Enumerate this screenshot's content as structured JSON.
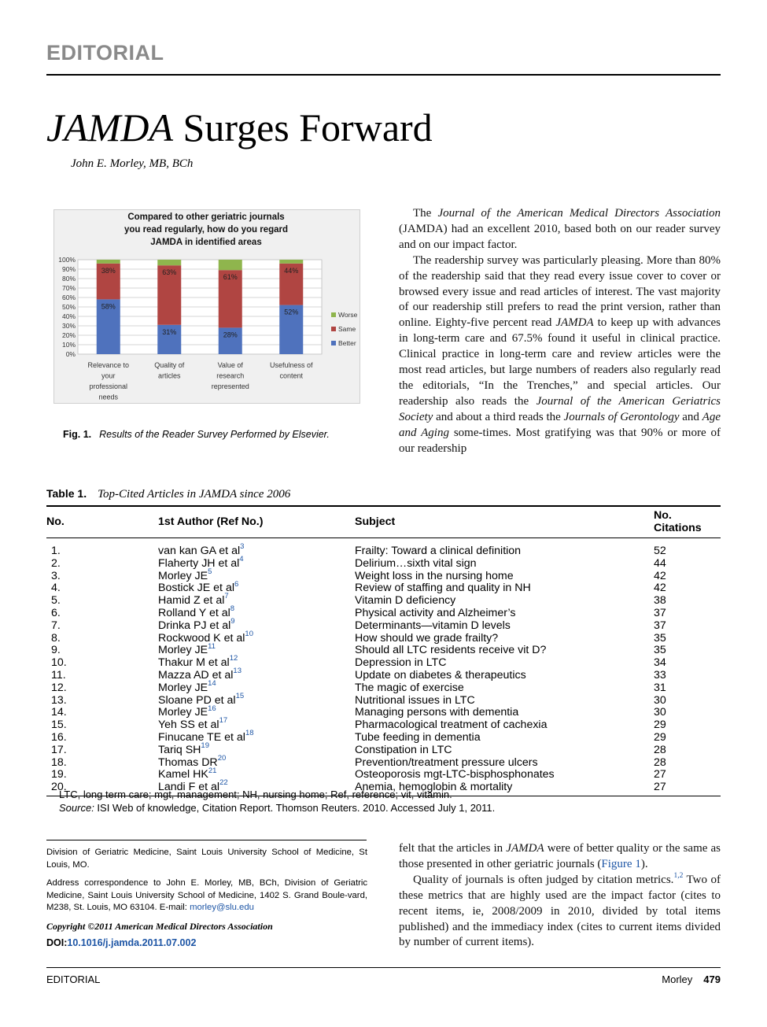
{
  "header": {
    "section_label": "EDITORIAL"
  },
  "article": {
    "title_italic": "JAMDA",
    "title_rest": " Surges Forward",
    "author": "John E. Morley, MB, BCh"
  },
  "figure": {
    "label": "Fig. 1.",
    "caption": "Results of the Reader Survey Performed by Elsevier.",
    "chart_title_lines": [
      "Compared to other geriatric journals",
      "you read regularly, how do you regard",
      "JAMDA in identified areas"
    ]
  },
  "chart_data": {
    "type": "bar",
    "stacked": true,
    "title": "Compared to other geriatric journals you read regularly, how do you regard JAMDA in identified areas",
    "categories": [
      [
        "Relevance to",
        "your",
        "professional",
        "needs"
      ],
      [
        "Quality of",
        "articles"
      ],
      [
        "Value of",
        "research",
        "represented"
      ],
      [
        "Usefulness of",
        "content"
      ]
    ],
    "series": [
      {
        "name": "Better",
        "color": "#4f72bd",
        "values": [
          58,
          31,
          28,
          52
        ],
        "labels": [
          "58%",
          "31%",
          "28%",
          "52%"
        ]
      },
      {
        "name": "Same",
        "color": "#b04542",
        "values": [
          38,
          63,
          61,
          44
        ],
        "labels": [
          "38%",
          "63%",
          "61%",
          "44%"
        ]
      },
      {
        "name": "Worse",
        "color": "#8fb54d",
        "values": [
          4,
          6,
          11,
          4
        ],
        "labels": [
          "",
          "",
          "",
          ""
        ]
      }
    ],
    "y_ticks": [
      "0%",
      "10%",
      "20%",
      "30%",
      "40%",
      "50%",
      "60%",
      "70%",
      "80%",
      "90%",
      "100%"
    ],
    "ylim": [
      0,
      100
    ],
    "grid": true,
    "legend_position": "right"
  },
  "body": {
    "right_col": {
      "p1_a": "The ",
      "p1_i": "Journal of the American Medical Directors Association",
      "p1_b": " (JAMDA) had an excellent 2010, based both on our reader survey and on our impact factor.",
      "p2_a": "The readership survey was particularly pleasing. More than 80% of the readership said that they read every issue cover to cover or browsed every issue and read articles of interest. The vast majority of our readership still prefers to read the print version, rather than online. Eighty-five percent read ",
      "p2_i1": "JAMDA",
      "p2_b": " to keep up with advances in long-term care and 67.5% found it useful in clinical practice. Clinical practice in long-term care and review articles were the most read articles, but large numbers of readers also regularly read the editorials, “In the Trenches,” and special articles. Our readership also reads the ",
      "p2_i2": "Journal of the American Geriatrics Society",
      "p2_c": " and about a third reads the ",
      "p2_i3": "Journals of Gerontology",
      "p2_d": " and ",
      "p2_i4": "Age and Aging",
      "p2_e": " some-times. Most gratifying was that 90% or more of our readership"
    },
    "lower_col": {
      "p3_a": "felt that the articles in ",
      "p3_i": "JAMDA",
      "p3_b": " were of better quality or the same as those presented in other geriatric journals (",
      "p3_link": "Figure 1",
      "p3_c": ").",
      "p4_a": "Quality of journals is often judged by citation metrics.",
      "p4_sup": "1,2",
      "p4_b": " Two of these metrics that are highly used are the impact factor (cites to recent items, ie, 2008/2009 in 2010, divided by total items published) and the immediacy index (cites to current items divided by number of current items)."
    }
  },
  "table": {
    "label": "Table 1.",
    "caption": "Top-Cited Articles in JAMDA since 2006",
    "headers": [
      "No.",
      "1st Author (Ref No.)",
      "Subject",
      "No. Citations"
    ],
    "rows": [
      {
        "no": "1.",
        "author": "van kan GA et al",
        "ref": "3",
        "subject": "Frailty: Toward a clinical definition",
        "cites": "52"
      },
      {
        "no": "2.",
        "author": "Flaherty JH et al",
        "ref": "4",
        "subject": "Delirium…sixth vital sign",
        "cites": "44"
      },
      {
        "no": "3.",
        "author": "Morley JE",
        "ref": "5",
        "subject": "Weight loss in the nursing home",
        "cites": "42"
      },
      {
        "no": "4.",
        "author": "Bostick JE et al",
        "ref": "6",
        "subject": "Review of staffing and quality in NH",
        "cites": "42"
      },
      {
        "no": "5.",
        "author": "Hamid Z et al",
        "ref": "7",
        "subject": "Vitamin D deficiency",
        "cites": "38"
      },
      {
        "no": "6.",
        "author": "Rolland Y et al",
        "ref": "8",
        "subject": "Physical activity and Alzheimer’s",
        "cites": "37"
      },
      {
        "no": "7.",
        "author": "Drinka PJ et al",
        "ref": "9",
        "subject": "Determinants—vitamin D levels",
        "cites": "37"
      },
      {
        "no": "8.",
        "author": "Rockwood K et al",
        "ref": "10",
        "subject": "How should we grade frailty?",
        "cites": "35"
      },
      {
        "no": "9.",
        "author": "Morley JE",
        "ref": "11",
        "subject": "Should all LTC residents receive vit D?",
        "cites": "35"
      },
      {
        "no": "10.",
        "author": "Thakur M et al",
        "ref": "12",
        "subject": "Depression in LTC",
        "cites": "34"
      },
      {
        "no": "11.",
        "author": "Mazza AD et al",
        "ref": "13",
        "subject": "Update on diabetes & therapeutics",
        "cites": "33"
      },
      {
        "no": "12.",
        "author": "Morley JE",
        "ref": "14",
        "subject": "The magic of exercise",
        "cites": "31"
      },
      {
        "no": "13.",
        "author": "Sloane PD et al",
        "ref": "15",
        "subject": "Nutritional issues in LTC",
        "cites": "30"
      },
      {
        "no": "14.",
        "author": "Morley JE",
        "ref": "16",
        "subject": "Managing persons with dementia",
        "cites": "30"
      },
      {
        "no": "15.",
        "author": "Yeh SS et al",
        "ref": "17",
        "subject": "Pharmacological treatment of cachexia",
        "cites": "29"
      },
      {
        "no": "16.",
        "author": "Finucane TE et al",
        "ref": "18",
        "subject": "Tube feeding in dementia",
        "cites": "29"
      },
      {
        "no": "17.",
        "author": "Tariq SH",
        "ref": "19",
        "subject": "Constipation in LTC",
        "cites": "28"
      },
      {
        "no": "18.",
        "author": "Thomas DR",
        "ref": "20",
        "subject": "Prevention/treatment pressure ulcers",
        "cites": "28"
      },
      {
        "no": "19.",
        "author": "Kamel HK",
        "ref": "21",
        "subject": "Osteoporosis mgt-LTC-bisphosphonates",
        "cites": "27"
      },
      {
        "no": "20.",
        "author": "Landi F et al",
        "ref": "22",
        "subject": "Anemia, hemoglobin & mortality",
        "cites": "27"
      }
    ],
    "note_abbrev": "LTC, long term care; mgt, management; NH, nursing home; Ref, reference; vit, vitamin.",
    "note_source_label": "Source:",
    "note_source": " ISI Web of knowledge, Citation Report. Thomson Reuters. 2010. Accessed July 1, 2011."
  },
  "affiliation": {
    "division": "Division of Geriatric Medicine, Saint Louis University School of Medicine, St Louis, MO.",
    "address": "Address correspondence to John E. Morley, MB, BCh, Division of Geriatric Medicine, Saint Louis University School of Medicine, 1402 S. Grand Boule-vard, M238, St. Louis, MO 63104. E-mail: ",
    "email": "morley@slu.edu",
    "copyright": "Copyright ©2011 American Medical Directors Association",
    "doi_label": "DOI:",
    "doi": "10.1016/j.jamda.2011.07.002"
  },
  "footer": {
    "left": "EDITORIAL",
    "author": "Morley",
    "page": "479"
  }
}
